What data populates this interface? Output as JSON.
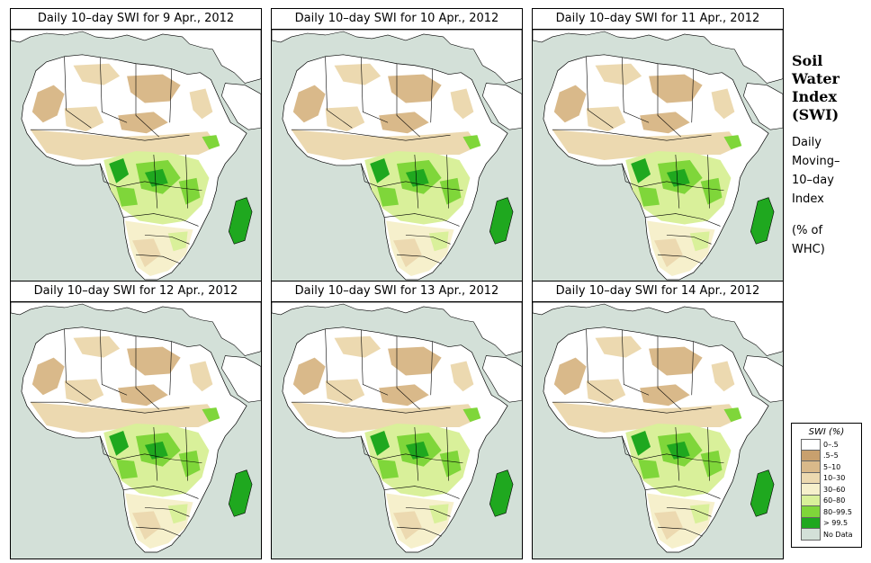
{
  "panels": [
    {
      "title": "Daily 10–day SWI for  9 Apr., 2012"
    },
    {
      "title": "Daily 10–day SWI for  10 Apr., 2012"
    },
    {
      "title": "Daily 10–day SWI for  11 Apr., 2012"
    },
    {
      "title": "Daily 10–day SWI for  12 Apr., 2012"
    },
    {
      "title": "Daily 10–day SWI for  13 Apr., 2012"
    },
    {
      "title": "Daily 10–day SWI for  14 Apr., 2012"
    }
  ],
  "side": {
    "title": "Soil\nWater\nIndex\n(SWI)",
    "subtitle": "Daily\nMoving–\n10–day\nIndex",
    "units": "(% of\n WHC)"
  },
  "legend": {
    "title": "SWI (%)",
    "items": [
      {
        "label": "0–.5",
        "color": "#ffffff"
      },
      {
        "label": ".5–5",
        "color": "#c8a06e"
      },
      {
        "label": "5–10",
        "color": "#d9b98a"
      },
      {
        "label": "10–30",
        "color": "#ecd9b0"
      },
      {
        "label": "30–60",
        "color": "#f6f0cc"
      },
      {
        "label": "60–80",
        "color": "#d9f09a"
      },
      {
        "label": "80–99.5",
        "color": "#7fd63a"
      },
      {
        "label": "> 99.5",
        "color": "#1fa81f"
      },
      {
        "label": "No Data",
        "color": "#d3e0d8"
      }
    ]
  }
}
